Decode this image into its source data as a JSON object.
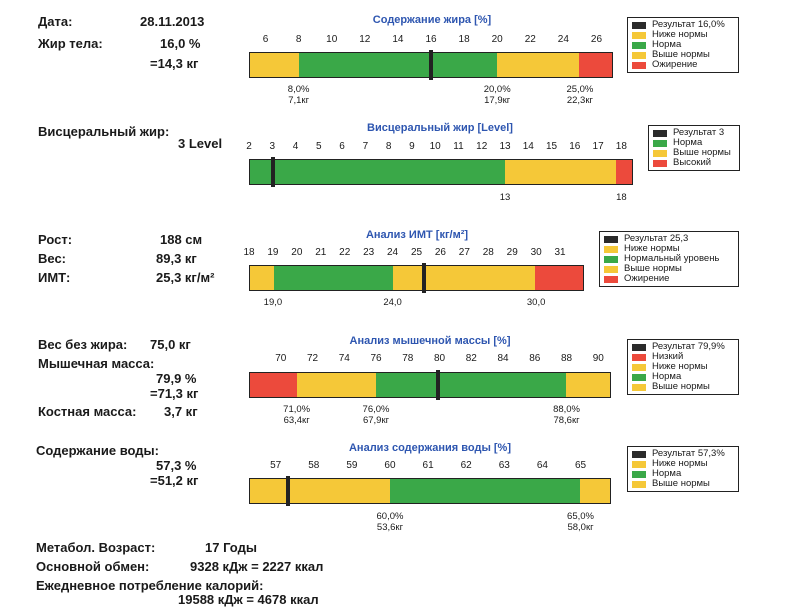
{
  "colors": {
    "result": "#2b2b2b",
    "low": "#f5c838",
    "normal": "#3aa848",
    "high": "#f5c838",
    "obese": "#ec4a3c"
  },
  "fat": {
    "date_label": "Дата:",
    "date_value": "28.11.2013",
    "fat_label": "Жир тела:",
    "fat_pct": "16,0 %",
    "fat_kg": "=14,3 кг",
    "chart": {
      "title": "Содержание жира [%]",
      "ticks": [
        "6",
        "8",
        "10",
        "12",
        "14",
        "16",
        "18",
        "20",
        "22",
        "24",
        "26"
      ],
      "below": [
        {
          "pct": "8,0%",
          "kg": "7,1кг"
        },
        {
          "pct": "20,0%",
          "kg": "17,9кг"
        },
        {
          "pct": "25,0%",
          "kg": "22,3кг"
        }
      ]
    },
    "legend": [
      "Результат 16,0%",
      "Ниже нормы",
      "Норма",
      "Выше нормы",
      "Ожирение"
    ]
  },
  "visceral": {
    "label": "Висцеральный жир:",
    "value": "3 Level",
    "chart": {
      "title": "Висцеральный жир [Level]",
      "ticks": [
        "2",
        "3",
        "4",
        "5",
        "6",
        "7",
        "8",
        "9",
        "10",
        "11",
        "12",
        "13",
        "14",
        "15",
        "16",
        "17",
        "18"
      ],
      "below": [
        "13",
        "18"
      ]
    },
    "legend": [
      "Результат 3",
      "Норма",
      "Выше нормы",
      "Высокий"
    ]
  },
  "bmi": {
    "height_label": "Рост:",
    "height_value": "188 см",
    "weight_label": "Вес:",
    "weight_value": "89,3 кг",
    "bmi_label": "ИМТ:",
    "bmi_value": "25,3 кг/м²",
    "chart": {
      "title": "Анализ ИМТ [кг/м²]",
      "ticks": [
        "18",
        "19",
        "20",
        "21",
        "22",
        "23",
        "24",
        "25",
        "26",
        "27",
        "28",
        "29",
        "30",
        "31"
      ],
      "below": [
        "19,0",
        "24,0",
        "30,0"
      ]
    },
    "legend": [
      "Результат 25,3",
      "Ниже нормы",
      "Нормальный уровень",
      "Выше нормы",
      "Ожирение"
    ]
  },
  "muscle": {
    "lean_label": "Вес без жира:",
    "lean_value": "75,0 кг",
    "muscle_label": "Мышечная масса:",
    "muscle_pct": "79,9 %",
    "muscle_kg": "=71,3 кг",
    "bone_label": "Костная масса:",
    "bone_value": "3,7 кг",
    "chart": {
      "title": "Анализ мышечной массы [%]",
      "ticks": [
        "70",
        "72",
        "74",
        "76",
        "78",
        "80",
        "82",
        "84",
        "86",
        "88",
        "90"
      ],
      "below": [
        {
          "pct": "71,0%",
          "kg": "63,4кг"
        },
        {
          "pct": "76,0%",
          "kg": "67,9кг"
        },
        {
          "pct": "88,0%",
          "kg": "78,6кг"
        }
      ]
    },
    "legend": [
      "Результат 79,9%",
      "Низкий",
      "Ниже нормы",
      "Норма",
      "Выше нормы"
    ]
  },
  "water": {
    "label": "Содержание воды:",
    "pct": "57,3 %",
    "kg": "=51,2 кг",
    "chart": {
      "title": "Анализ содержания воды [%]",
      "ticks": [
        "57",
        "58",
        "59",
        "60",
        "61",
        "62",
        "63",
        "64",
        "65"
      ],
      "below": [
        {
          "pct": "60,0%",
          "kg": "53,6кг"
        },
        {
          "pct": "65,0%",
          "kg": "58,0кг"
        }
      ]
    },
    "legend": [
      "Результат 57,3%",
      "Ниже нормы",
      "Норма",
      "Выше нормы"
    ]
  },
  "bottom": {
    "meta_age_label": "Метабол. Возраст:",
    "meta_age_value": "17 Годы",
    "bmr_label": "Основной обмен:",
    "bmr_value": "9328 кДж = 2227 ккал",
    "daily_label": "Ежедневное потребление калорий:",
    "daily_value": "19588 кДж = 4678 ккал"
  },
  "chart_data": [
    {
      "type": "bar",
      "title": "Содержание жира [%]",
      "xlim": [
        5,
        27
      ],
      "ranges": [
        {
          "label": "Ниже нормы",
          "from": 5,
          "to": 8
        },
        {
          "label": "Норма",
          "from": 8,
          "to": 20
        },
        {
          "label": "Выше нормы",
          "from": 20,
          "to": 25
        },
        {
          "label": "Ожирение",
          "from": 25,
          "to": 27
        }
      ],
      "result": 16.0
    },
    {
      "type": "bar",
      "title": "Висцеральный жир [Level]",
      "xlim": [
        2,
        18.5
      ],
      "ranges": [
        {
          "label": "Норма",
          "from": 2,
          "to": 13
        },
        {
          "label": "Выше нормы",
          "from": 13,
          "to": 17.8
        },
        {
          "label": "Высокий",
          "from": 17.8,
          "to": 18.5
        }
      ],
      "result": 3
    },
    {
      "type": "bar",
      "title": "Анализ ИМТ [кг/м²]",
      "xlim": [
        18,
        32
      ],
      "ranges": [
        {
          "label": "Ниже нормы",
          "from": 18,
          "to": 19
        },
        {
          "label": "Нормальный уровень",
          "from": 19,
          "to": 24
        },
        {
          "label": "Выше нормы",
          "from": 24,
          "to": 30
        },
        {
          "label": "Ожирение",
          "from": 30,
          "to": 32
        }
      ],
      "result": 25.3
    },
    {
      "type": "bar",
      "title": "Анализ мышечной массы [%]",
      "xlim": [
        68,
        90.8
      ],
      "ranges": [
        {
          "label": "Низкий",
          "from": 68,
          "to": 71
        },
        {
          "label": "Ниже нормы",
          "from": 71,
          "to": 76
        },
        {
          "label": "Норма",
          "from": 76,
          "to": 88
        },
        {
          "label": "Выше нормы",
          "from": 88,
          "to": 90.8
        }
      ],
      "result": 79.9
    },
    {
      "type": "bar",
      "title": "Анализ содержания воды [%]",
      "xlim": [
        56.3,
        65.8
      ],
      "ranges": [
        {
          "label": "Ниже нормы",
          "from": 56.3,
          "to": 60
        },
        {
          "label": "Норма",
          "from": 60,
          "to": 65
        },
        {
          "label": "Выше нормы",
          "from": 65,
          "to": 65.8
        }
      ],
      "result": 57.3
    }
  ]
}
